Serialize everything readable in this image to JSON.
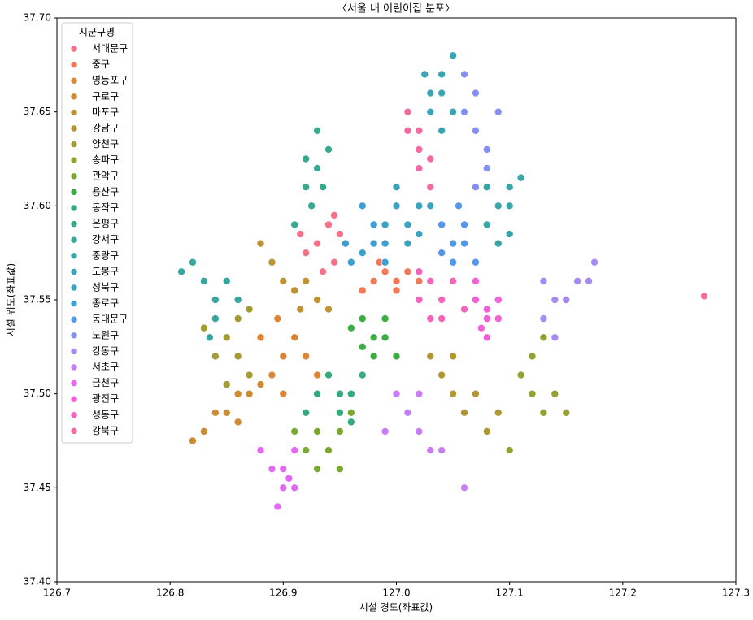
{
  "chart_data": {
    "type": "scatter",
    "title": "〈서울 내 어린이집 분포〉",
    "x_label": "시설 경도(좌표값)",
    "y_label": "시설 위도(좌표값)",
    "legend_title": "시군구명",
    "legend": "upper left",
    "xlim": [
      126.7,
      127.3
    ],
    "ylim": [
      37.4,
      37.7
    ],
    "xticks": [
      126.7,
      126.8,
      126.9,
      {
        "value": 127,
        "label": "127.0"
      },
      127.1,
      127.2,
      127.3
    ],
    "yticks": [
      {
        "value": 37.4,
        "label": "37.40"
      },
      37.45,
      {
        "value": 37.5,
        "label": "37.50"
      },
      37.55,
      {
        "value": 37.6,
        "label": "37.60"
      },
      37.65,
      {
        "value": 37.7,
        "label": "37.70"
      }
    ],
    "series": [
      {
        "name": "서대문구",
        "color": "#f77189",
        "x": [
          126.93,
          126.94,
          126.92,
          126.945,
          126.95,
          126.935,
          126.915,
          126.945
        ],
        "values": [
          37.58,
          37.59,
          37.575,
          37.57,
          37.585,
          37.565,
          37.585,
          37.595
        ]
      },
      {
        "name": "중구",
        "color": "#f0795a",
        "x": [
          126.98,
          126.99,
          127.0,
          127.01,
          127.02,
          126.97,
          127.0,
          126.985
        ],
        "values": [
          37.56,
          37.565,
          37.56,
          37.565,
          37.56,
          37.555,
          37.555,
          37.57
        ]
      },
      {
        "name": "영등포구",
        "color": "#dc8532",
        "x": [
          126.9,
          126.91,
          126.89,
          126.92,
          126.9,
          126.88,
          126.93,
          126.895
        ],
        "values": [
          37.52,
          37.53,
          37.51,
          37.52,
          37.5,
          37.53,
          37.51,
          37.54
        ]
      },
      {
        "name": "구로구",
        "color": "#cd8c32",
        "x": [
          126.85,
          126.86,
          126.83,
          126.87,
          126.84,
          126.82,
          126.86,
          126.88
        ],
        "values": [
          37.49,
          37.5,
          37.48,
          37.5,
          37.49,
          37.475,
          37.485,
          37.505
        ]
      },
      {
        "name": "마포구",
        "color": "#bf9232",
        "x": [
          126.9,
          126.91,
          126.93,
          126.92,
          126.88,
          126.89,
          126.94,
          126.915
        ],
        "values": [
          37.56,
          37.555,
          37.55,
          37.56,
          37.58,
          37.57,
          37.545,
          37.545
        ]
      },
      {
        "name": "강남구",
        "color": "#b19732",
        "x": [
          127.05,
          127.04,
          127.06,
          127.03,
          127.07,
          127.05,
          127.08,
          127.09
        ],
        "values": [
          37.5,
          37.51,
          37.49,
          37.52,
          37.5,
          37.52,
          37.48,
          37.49
        ]
      },
      {
        "name": "양천구",
        "color": "#a39c32",
        "x": [
          126.86,
          126.85,
          126.87,
          126.84,
          126.86,
          126.83,
          126.85,
          126.87
        ],
        "values": [
          37.52,
          37.53,
          37.51,
          37.52,
          37.54,
          37.535,
          37.505,
          37.545
        ]
      },
      {
        "name": "송파구",
        "color": "#93a131",
        "x": [
          127.12,
          127.11,
          127.13,
          127.14,
          127.12,
          127.15,
          127.1,
          127.13
        ],
        "values": [
          37.5,
          37.51,
          37.49,
          37.5,
          37.52,
          37.49,
          37.47,
          37.53
        ]
      },
      {
        "name": "관악구",
        "color": "#7aa831",
        "x": [
          126.94,
          126.93,
          126.95,
          126.92,
          126.95,
          126.96,
          126.91,
          126.93
        ],
        "values": [
          37.47,
          37.48,
          37.48,
          37.47,
          37.46,
          37.49,
          37.48,
          37.46
        ]
      },
      {
        "name": "용산구",
        "color": "#3bad44",
        "x": [
          126.98,
          126.97,
          126.99,
          126.96,
          126.98,
          126.99,
          126.97,
          127.0
        ],
        "values": [
          37.53,
          37.54,
          37.53,
          37.535,
          37.52,
          37.54,
          37.525,
          37.52
        ]
      },
      {
        "name": "동작구",
        "color": "#35ab7c",
        "x": [
          126.95,
          126.94,
          126.96,
          126.93,
          126.95,
          126.97,
          126.92,
          126.96
        ],
        "values": [
          37.5,
          37.51,
          37.5,
          37.5,
          37.49,
          37.51,
          37.49,
          37.485
        ]
      },
      {
        "name": "은평구",
        "color": "#36a98f",
        "x": [
          126.93,
          126.92,
          126.94,
          126.925,
          126.93,
          126.91,
          126.935,
          126.92
        ],
        "values": [
          37.62,
          37.61,
          37.63,
          37.6,
          37.64,
          37.59,
          37.61,
          37.625
        ]
      },
      {
        "name": "강서구",
        "color": "#37a79d",
        "x": [
          126.83,
          126.82,
          126.84,
          126.81,
          126.85,
          126.84,
          126.86,
          126.835
        ],
        "values": [
          37.56,
          37.57,
          37.55,
          37.565,
          37.56,
          37.54,
          37.55,
          37.53
        ]
      },
      {
        "name": "중랑구",
        "color": "#38a6a8",
        "x": [
          127.09,
          127.08,
          127.1,
          127.09,
          127.1,
          127.08,
          127.1,
          127.11
        ],
        "values": [
          37.6,
          37.59,
          37.6,
          37.58,
          37.61,
          37.61,
          37.585,
          37.615
        ]
      },
      {
        "name": "도봉구",
        "color": "#39a4b3",
        "x": [
          127.04,
          127.03,
          127.04,
          127.05,
          127.03,
          127.05,
          127.04,
          127.025
        ],
        "values": [
          37.66,
          37.65,
          37.67,
          37.68,
          37.66,
          37.65,
          37.64,
          37.67
        ]
      },
      {
        "name": "성북구",
        "color": "#3ba2c0",
        "x": [
          127.0,
          127.01,
          127.02,
          127.0,
          127.01,
          126.99,
          127.02,
          127.03
        ],
        "values": [
          37.6,
          37.59,
          37.6,
          37.61,
          37.58,
          37.59,
          37.585,
          37.6
        ]
      },
      {
        "name": "종로구",
        "color": "#3d9ed2",
        "x": [
          126.98,
          126.97,
          126.99,
          126.96,
          126.98,
          126.97,
          126.99,
          126.955
        ],
        "values": [
          37.58,
          37.575,
          37.58,
          37.57,
          37.59,
          37.6,
          37.57,
          37.58
        ]
      },
      {
        "name": "동대문구",
        "color": "#5497ea",
        "x": [
          127.05,
          127.04,
          127.06,
          127.05,
          127.06,
          127.04,
          127.07,
          127.055
        ],
        "values": [
          37.58,
          37.59,
          37.58,
          37.57,
          37.59,
          37.575,
          37.57,
          37.6
        ]
      },
      {
        "name": "노원구",
        "color": "#8590f4",
        "x": [
          127.07,
          127.06,
          127.08,
          127.07,
          127.08,
          127.06,
          127.09,
          127.07
        ],
        "values": [
          37.64,
          37.65,
          37.63,
          37.66,
          37.62,
          37.67,
          37.65,
          37.61
        ]
      },
      {
        "name": "강동구",
        "color": "#a68af4",
        "x": [
          127.14,
          127.13,
          127.15,
          127.16,
          127.14,
          127.17,
          127.13,
          127.175
        ],
        "values": [
          37.55,
          37.54,
          37.55,
          37.56,
          37.53,
          37.56,
          37.56,
          37.57
        ]
      },
      {
        "name": "서초구",
        "color": "#c77df4",
        "x": [
          127.02,
          127.01,
          127.03,
          127.0,
          127.02,
          127.04,
          127.06,
          126.99
        ],
        "values": [
          37.48,
          37.49,
          37.47,
          37.5,
          37.5,
          37.47,
          37.45,
          37.48
        ]
      },
      {
        "name": "금천구",
        "color": "#e568f4",
        "x": [
          126.9,
          126.89,
          126.9,
          126.91,
          126.895,
          126.88,
          126.905,
          126.91
        ],
        "values": [
          37.46,
          37.46,
          37.45,
          37.47,
          37.44,
          37.47,
          37.455,
          37.45
        ]
      },
      {
        "name": "광진구",
        "color": "#f45fd8",
        "x": [
          127.08,
          127.07,
          127.09,
          127.08,
          127.07,
          127.09,
          127.08,
          127.075
        ],
        "values": [
          37.54,
          37.55,
          37.54,
          37.53,
          37.56,
          37.55,
          37.545,
          37.535
        ]
      },
      {
        "name": "성동구",
        "color": "#f564ba",
        "x": [
          127.04,
          127.03,
          127.02,
          127.04,
          127.05,
          127.03,
          127.02,
          127.06
        ],
        "values": [
          37.55,
          37.56,
          37.55,
          37.54,
          37.56,
          37.54,
          37.565,
          37.545
        ]
      },
      {
        "name": "강북구",
        "color": "#f66aa1",
        "x": [
          127.02,
          127.01,
          127.02,
          127.03,
          127.01,
          127.02,
          127.03,
          127.272
        ],
        "values": [
          37.63,
          37.64,
          37.62,
          37.61,
          37.65,
          37.64,
          37.625,
          37.552
        ]
      }
    ]
  }
}
